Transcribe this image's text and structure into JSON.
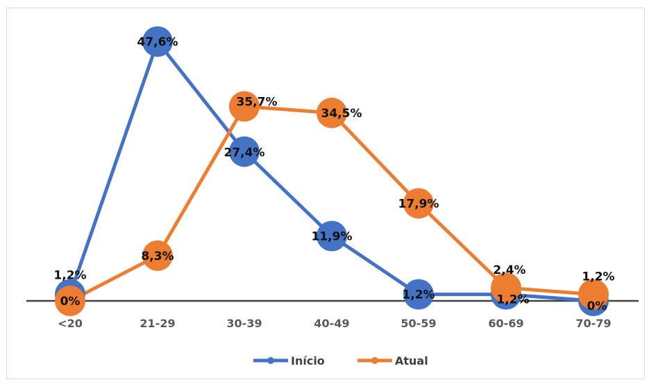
{
  "chart_data": {
    "type": "line",
    "categories": [
      "<20",
      "21-29",
      "30-39",
      "40-49",
      "50-59",
      "60-69",
      "70-79"
    ],
    "series": [
      {
        "name": "Início",
        "values": [
          1.2,
          47.6,
          27.4,
          11.9,
          1.2,
          1.2,
          0
        ],
        "labels": [
          "1,2%",
          "47,6%",
          "27,4%",
          "11,9%",
          "1,2%",
          "1,2%",
          "0%"
        ],
        "color": "#4472C4"
      },
      {
        "name": "Atual",
        "values": [
          0,
          8.3,
          35.7,
          34.5,
          17.9,
          2.4,
          1.2
        ],
        "labels": [
          "0%",
          "8,3%",
          "35,7%",
          "34,5%",
          "17,9%",
          "2,4%",
          "1,2%"
        ],
        "color": "#ED7D31"
      }
    ],
    "ylim": [
      0,
      50
    ],
    "grid": false,
    "legend": "bottom",
    "title": "",
    "xlabel": "",
    "ylabel": ""
  }
}
